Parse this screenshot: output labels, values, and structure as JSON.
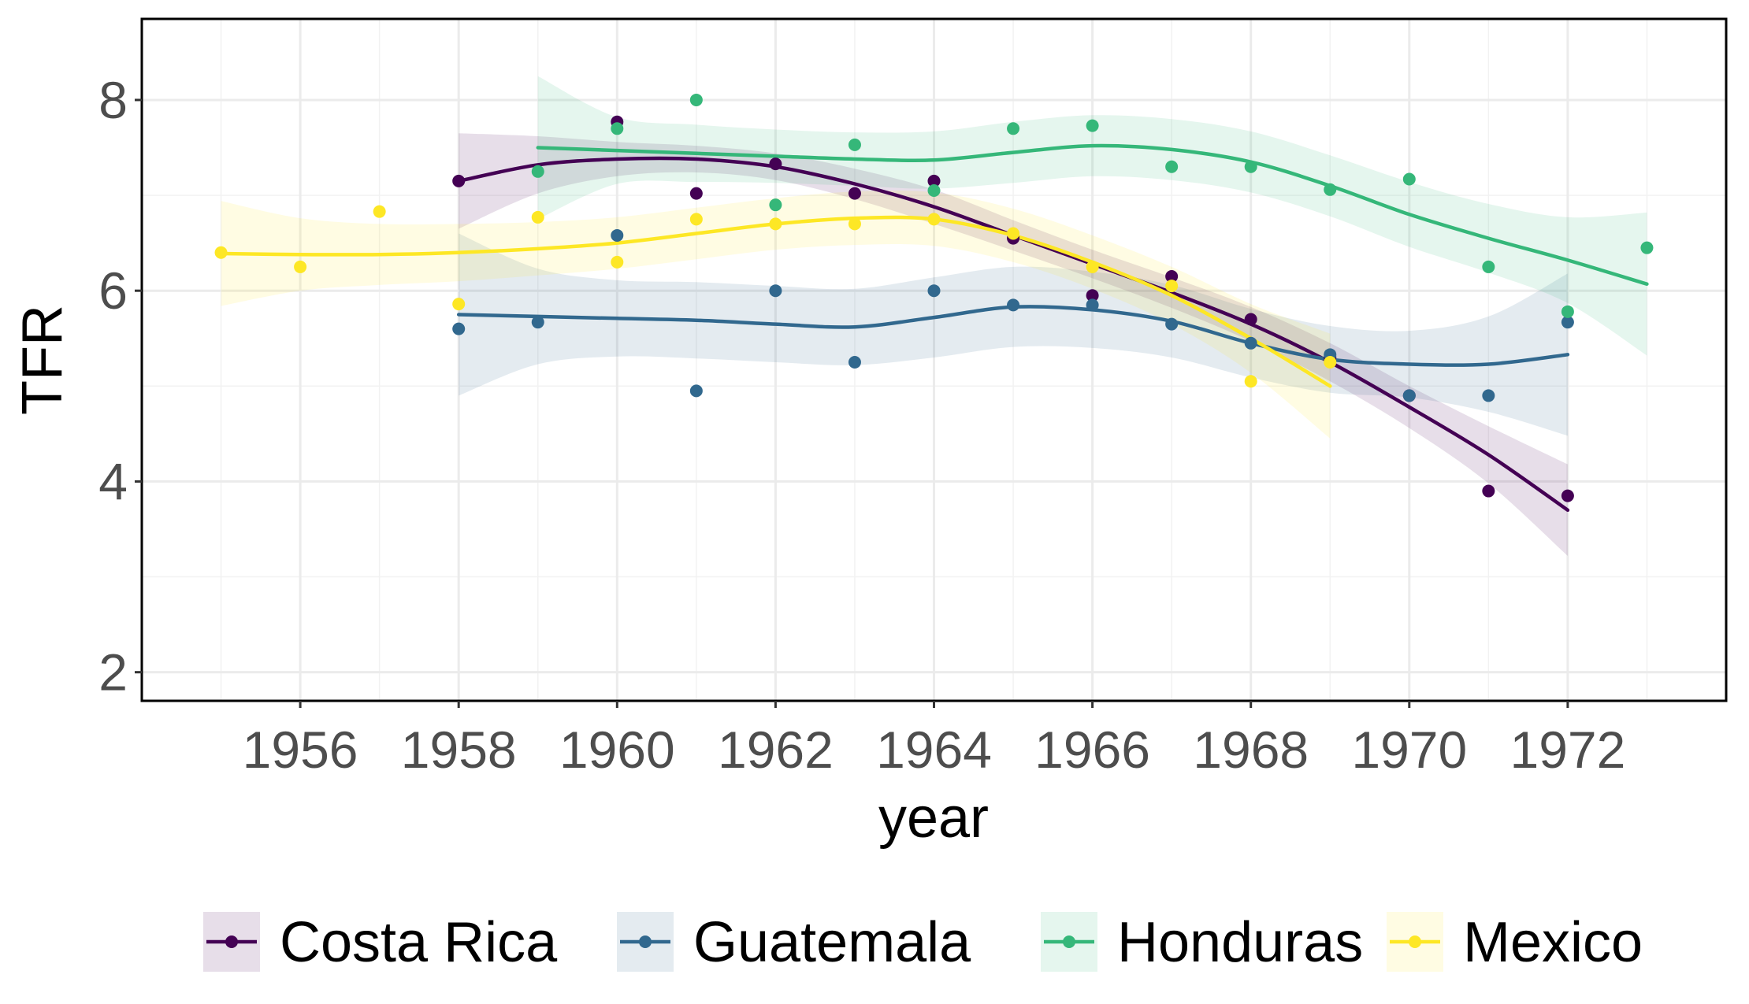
{
  "chart_data": {
    "type": "scatter",
    "xlabel": "year",
    "ylabel": "TFR",
    "xlim": [
      1954.0,
      1974.0
    ],
    "ylim": [
      1.7,
      8.85
    ],
    "x_ticks": [
      1956,
      1958,
      1960,
      1962,
      1964,
      1966,
      1968,
      1970,
      1972
    ],
    "x_tick_labels": [
      "1956",
      "1958",
      "1960",
      "1962",
      "1964",
      "1966",
      "1968",
      "1970",
      "1972"
    ],
    "y_ticks": [
      2,
      4,
      6,
      8
    ],
    "y_tick_labels": [
      "2",
      "4",
      "6",
      "8"
    ],
    "grid": true,
    "legend_position": "bottom",
    "series": [
      {
        "name": "Costa Rica",
        "color": "#440154",
        "points": [
          [
            1958,
            7.15
          ],
          [
            1960,
            7.77
          ],
          [
            1961,
            7.02
          ],
          [
            1962,
            7.33
          ],
          [
            1963,
            7.02
          ],
          [
            1964,
            7.15
          ],
          [
            1965,
            6.55
          ],
          [
            1966,
            5.95
          ],
          [
            1967,
            6.15
          ],
          [
            1968,
            5.7
          ],
          [
            1969,
            5.3
          ],
          [
            1970,
            4.9
          ],
          [
            1971,
            3.9
          ],
          [
            1972,
            3.85
          ]
        ],
        "smooth": [
          [
            1958,
            7.15
          ],
          [
            1959,
            7.32
          ],
          [
            1960,
            7.38
          ],
          [
            1961,
            7.38
          ],
          [
            1962,
            7.3
          ],
          [
            1963,
            7.12
          ],
          [
            1964,
            6.88
          ],
          [
            1965,
            6.58
          ],
          [
            1966,
            6.28
          ],
          [
            1967,
            5.98
          ],
          [
            1968,
            5.65
          ],
          [
            1969,
            5.25
          ],
          [
            1970,
            4.78
          ],
          [
            1971,
            4.28
          ],
          [
            1972,
            3.7
          ]
        ],
        "band_half_width": [
          0.5,
          0.3,
          0.18,
          0.14,
          0.14,
          0.16,
          0.18,
          0.16,
          0.15,
          0.16,
          0.18,
          0.2,
          0.22,
          0.3,
          0.48
        ]
      },
      {
        "name": "Guatemala",
        "color": "#31688E",
        "points": [
          [
            1958,
            5.6
          ],
          [
            1959,
            5.67
          ],
          [
            1960,
            6.58
          ],
          [
            1961,
            4.95
          ],
          [
            1962,
            6.0
          ],
          [
            1963,
            5.25
          ],
          [
            1964,
            6.0
          ],
          [
            1965,
            5.85
          ],
          [
            1966,
            5.85
          ],
          [
            1967,
            5.65
          ],
          [
            1968,
            5.45
          ],
          [
            1969,
            5.33
          ],
          [
            1970,
            4.9
          ],
          [
            1971,
            4.9
          ],
          [
            1972,
            5.67
          ]
        ],
        "smooth": [
          [
            1958,
            5.75
          ],
          [
            1959,
            5.73
          ],
          [
            1960,
            5.71
          ],
          [
            1961,
            5.69
          ],
          [
            1962,
            5.65
          ],
          [
            1963,
            5.62
          ],
          [
            1964,
            5.72
          ],
          [
            1965,
            5.83
          ],
          [
            1966,
            5.8
          ],
          [
            1967,
            5.68
          ],
          [
            1968,
            5.45
          ],
          [
            1969,
            5.28
          ],
          [
            1970,
            5.23
          ],
          [
            1971,
            5.23
          ],
          [
            1972,
            5.33
          ]
        ],
        "band_half_width": [
          0.85,
          0.5,
          0.4,
          0.4,
          0.4,
          0.4,
          0.42,
          0.42,
          0.4,
          0.38,
          0.36,
          0.35,
          0.35,
          0.5,
          0.85
        ]
      },
      {
        "name": "Honduras",
        "color": "#35B779",
        "points": [
          [
            1959,
            7.25
          ],
          [
            1960,
            7.7
          ],
          [
            1961,
            8.0
          ],
          [
            1962,
            6.9
          ],
          [
            1963,
            7.53
          ],
          [
            1964,
            7.05
          ],
          [
            1965,
            7.7
          ],
          [
            1966,
            7.73
          ],
          [
            1967,
            7.3
          ],
          [
            1968,
            7.3
          ],
          [
            1969,
            7.06
          ],
          [
            1970,
            7.17
          ],
          [
            1971,
            6.25
          ],
          [
            1972,
            5.78
          ],
          [
            1973,
            6.45
          ]
        ],
        "smooth": [
          [
            1959,
            7.5
          ],
          [
            1960,
            7.47
          ],
          [
            1961,
            7.44
          ],
          [
            1962,
            7.41
          ],
          [
            1963,
            7.38
          ],
          [
            1964,
            7.37
          ],
          [
            1965,
            7.45
          ],
          [
            1966,
            7.52
          ],
          [
            1967,
            7.48
          ],
          [
            1968,
            7.35
          ],
          [
            1969,
            7.1
          ],
          [
            1970,
            6.8
          ],
          [
            1971,
            6.55
          ],
          [
            1972,
            6.32
          ],
          [
            1973,
            6.07
          ]
        ],
        "band_half_width": [
          0.75,
          0.35,
          0.3,
          0.28,
          0.28,
          0.3,
          0.32,
          0.32,
          0.32,
          0.32,
          0.32,
          0.34,
          0.36,
          0.45,
          0.75
        ]
      },
      {
        "name": "Mexico",
        "color": "#FDE725",
        "points": [
          [
            1955,
            6.4
          ],
          [
            1956,
            6.25
          ],
          [
            1957,
            6.83
          ],
          [
            1958,
            5.86
          ],
          [
            1959,
            6.77
          ],
          [
            1960,
            6.3
          ],
          [
            1961,
            6.75
          ],
          [
            1962,
            6.7
          ],
          [
            1963,
            6.7
          ],
          [
            1964,
            6.75
          ],
          [
            1965,
            6.6
          ],
          [
            1966,
            6.25
          ],
          [
            1967,
            6.05
          ],
          [
            1968,
            5.05
          ],
          [
            1969,
            5.25
          ]
        ],
        "smooth": [
          [
            1955,
            6.39
          ],
          [
            1956,
            6.38
          ],
          [
            1957,
            6.38
          ],
          [
            1958,
            6.4
          ],
          [
            1959,
            6.44
          ],
          [
            1960,
            6.5
          ],
          [
            1961,
            6.6
          ],
          [
            1962,
            6.7
          ],
          [
            1963,
            6.76
          ],
          [
            1964,
            6.75
          ],
          [
            1965,
            6.58
          ],
          [
            1966,
            6.3
          ],
          [
            1967,
            5.95
          ],
          [
            1968,
            5.5
          ],
          [
            1969,
            5.0
          ]
        ],
        "band_half_width": [
          0.55,
          0.38,
          0.32,
          0.3,
          0.28,
          0.27,
          0.27,
          0.27,
          0.28,
          0.28,
          0.28,
          0.28,
          0.3,
          0.36,
          0.55
        ]
      }
    ]
  }
}
